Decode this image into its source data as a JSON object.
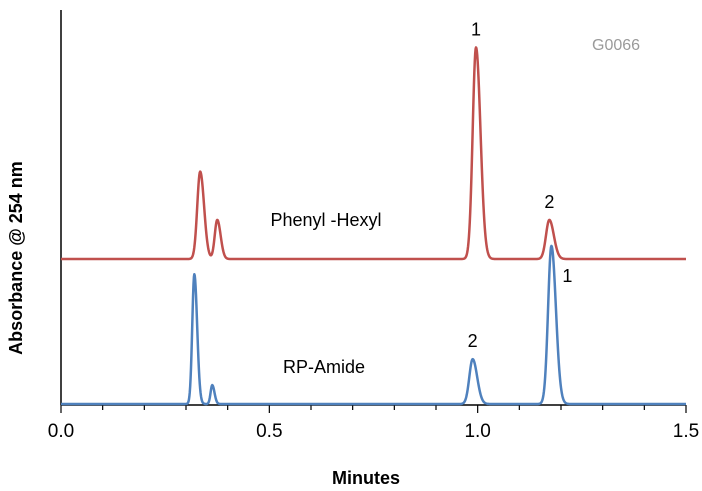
{
  "chart_data": {
    "type": "line",
    "title": "",
    "code": "G0066",
    "xlabel": "Minutes",
    "ylabel": "Absorbance @ 254 nm",
    "xlim": [
      0.0,
      1.5
    ],
    "xticks": [
      "0.0",
      "0.5",
      "1.0",
      "1.5"
    ],
    "x_minor_step": 0.1,
    "series": [
      {
        "name": "Phenyl -Hexyl",
        "color": "#c0504d",
        "baseline": 0,
        "peaks": [
          {
            "t": 0.334,
            "h": 0.38,
            "w": 0.007
          },
          {
            "t": 0.375,
            "h": 0.17,
            "w": 0.006
          },
          {
            "t": 0.996,
            "h": 0.92,
            "w": 0.008
          },
          {
            "t": 1.172,
            "h": 0.17,
            "w": 0.008
          }
        ],
        "peak_labels": [
          {
            "text": "1",
            "t": 0.996
          },
          {
            "text": "2",
            "t": 1.172
          }
        ]
      },
      {
        "name": "RP-Amide",
        "color": "#4f81bd",
        "baseline": 0,
        "peaks": [
          {
            "t": 0.32,
            "h": 0.55,
            "w": 0.005
          },
          {
            "t": 0.363,
            "h": 0.08,
            "w": 0.004
          },
          {
            "t": 0.988,
            "h": 0.19,
            "w": 0.008
          },
          {
            "t": 1.177,
            "h": 0.67,
            "w": 0.008
          }
        ],
        "peak_labels": [
          {
            "text": "2",
            "t": 0.988
          },
          {
            "text": "1",
            "t": 1.177
          }
        ]
      }
    ]
  }
}
